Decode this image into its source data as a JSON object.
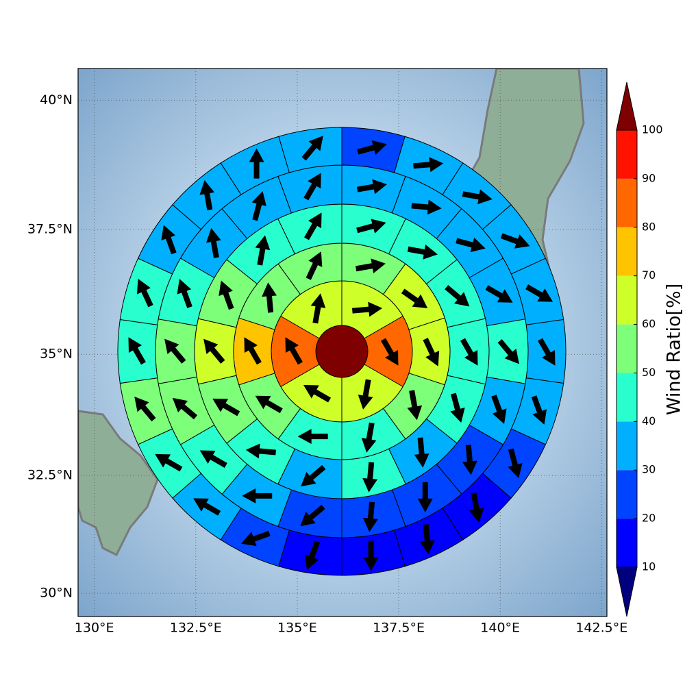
{
  "chart_data": {
    "type": "polar_sectors",
    "xlim": [
      129.6,
      142.63
    ],
    "ylim": [
      29.5,
      40.6
    ],
    "xticks": [
      {
        "value": 130,
        "label": "130°E"
      },
      {
        "value": 132.5,
        "label": "132.5°E"
      },
      {
        "value": 135,
        "label": "135°E"
      },
      {
        "value": 137.5,
        "label": "137.5°E"
      },
      {
        "value": 140,
        "label": "140°E"
      },
      {
        "value": 142.5,
        "label": "142.5°E"
      }
    ],
    "yticks": [
      {
        "value": 30,
        "label": "30°N"
      },
      {
        "value": 32.5,
        "label": "32.5°N"
      },
      {
        "value": 35,
        "label": "35°N"
      },
      {
        "value": 37.5,
        "label": "37.5°N"
      },
      {
        "value": 40,
        "label": "40°N"
      }
    ],
    "grid": true,
    "center": {
      "value": 105
    },
    "rings": [
      {
        "values": [
          65,
          85,
          65,
          65,
          85,
          65
        ],
        "directions": [
          85,
          150,
          190,
          300,
          330,
          10
        ]
      },
      {
        "values": [
          55,
          65,
          65,
          55,
          45,
          45,
          55,
          75,
          55,
          55
        ],
        "directions": [
          80,
          125,
          155,
          170,
          190,
          270,
          300,
          330,
          355,
          25
        ]
      },
      {
        "values": [
          45,
          45,
          45,
          45,
          45,
          35,
          45,
          35,
          45,
          55,
          65,
          55,
          45,
          45
        ],
        "directions": [
          75,
          100,
          130,
          150,
          165,
          175,
          185,
          230,
          275,
          300,
          320,
          340,
          10,
          30
        ]
      },
      {
        "values": [
          35,
          35,
          35,
          35,
          45,
          35,
          25,
          25,
          25,
          25,
          35,
          45,
          55,
          55,
          45,
          35,
          35,
          35
        ],
        "directions": [
          80,
          95,
          105,
          120,
          140,
          160,
          175,
          180,
          185,
          230,
          270,
          300,
          310,
          320,
          340,
          350,
          15,
          30
        ]
      },
      {
        "values": [
          25,
          35,
          35,
          35,
          35,
          35,
          35,
          25,
          15,
          15,
          15,
          15,
          25,
          35,
          45,
          55,
          45,
          45,
          35,
          35,
          35,
          35
        ],
        "directions": [
          75,
          85,
          100,
          110,
          120,
          150,
          160,
          165,
          170,
          175,
          180,
          200,
          250,
          300,
          300,
          320,
          330,
          335,
          340,
          350,
          0,
          40
        ]
      }
    ],
    "colorbar": {
      "label": "Wind Ratio[%]",
      "ticks": [
        10,
        20,
        30,
        40,
        50,
        60,
        70,
        80,
        90,
        100
      ],
      "colors": [
        "#00007f",
        "#0000ff",
        "#0044ff",
        "#00b0ff",
        "#29ffce",
        "#7dff7a",
        "#ceff29",
        "#ffc400",
        "#ff6800",
        "#ff1300",
        "#7f0000"
      ]
    }
  }
}
